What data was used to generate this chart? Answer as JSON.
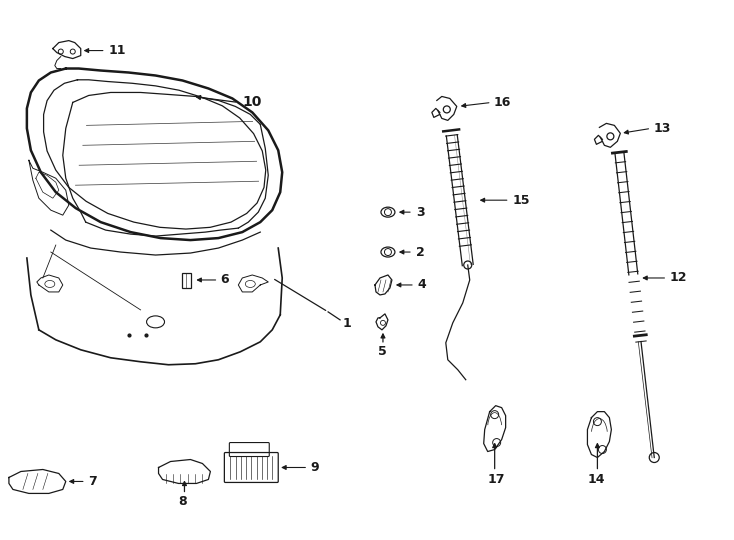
{
  "background_color": "#ffffff",
  "line_color": "#1a1a1a",
  "fig_width": 7.34,
  "fig_height": 5.4,
  "dpi": 100,
  "liftgate": {
    "outer_x": [
      0.55,
      0.38,
      0.28,
      0.22,
      0.2,
      0.22,
      0.3,
      0.45,
      0.65,
      0.9,
      1.2,
      1.55,
      1.9,
      2.25,
      2.55,
      2.78,
      2.95,
      3.05,
      3.08,
      3.05,
      2.92,
      2.72,
      2.45,
      2.1,
      1.75,
      1.4,
      1.05,
      0.75,
      0.55
    ],
    "outer_y": [
      4.7,
      4.6,
      4.42,
      4.2,
      3.95,
      3.68,
      3.42,
      3.2,
      3.05,
      2.92,
      2.82,
      2.75,
      2.72,
      2.75,
      2.82,
      2.92,
      3.05,
      3.22,
      3.5,
      3.78,
      4.05,
      4.25,
      4.42,
      4.55,
      4.62,
      4.65,
      4.65,
      4.68,
      4.7
    ]
  }
}
